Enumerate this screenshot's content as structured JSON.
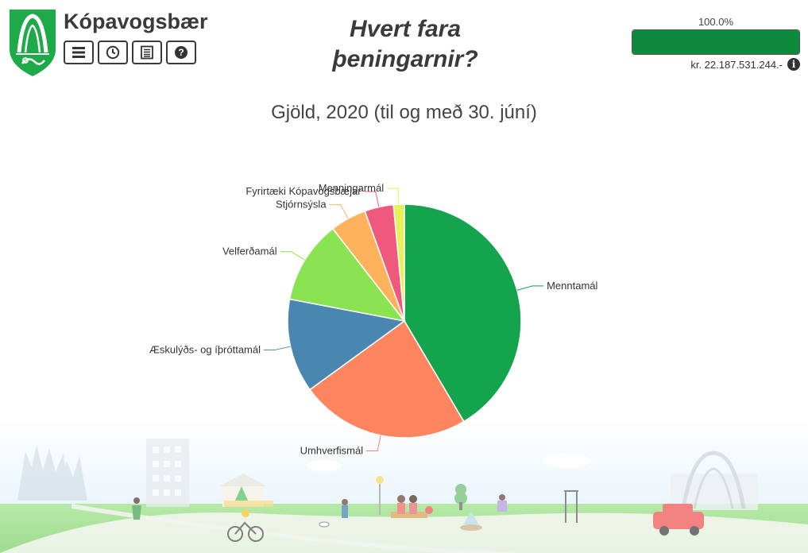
{
  "header": {
    "brand_name": "Kópavogsbær",
    "headline_line1": "Hvert fara",
    "headline_line2": "þeningarnir?",
    "toolbar": [
      {
        "name": "menu-button",
        "icon": "menu-icon"
      },
      {
        "name": "history-button",
        "icon": "clock-icon"
      },
      {
        "name": "list-button",
        "icon": "list-icon"
      },
      {
        "name": "help-button",
        "icon": "question-icon"
      }
    ]
  },
  "budget": {
    "percent_label": "100.0%",
    "percent_value": 1.0,
    "total_label": "kr. 22.187.531.244.-",
    "info_icon": "info-icon",
    "bar_color": "#0f8a3c"
  },
  "chart_data": {
    "type": "pie",
    "title": "Gjöld, 2020 (til og með 30. júní)",
    "slices": [
      {
        "label": "Menntamál",
        "percent": 41.5,
        "color": "#14a44d"
      },
      {
        "label": "Umhverfismál",
        "percent": 23.5,
        "color": "#ff8560"
      },
      {
        "label": "Æskulýðs- og íþróttamál",
        "percent": 13.0,
        "color": "#4a87b0"
      },
      {
        "label": "Velferðamál",
        "percent": 11.5,
        "color": "#8ae350"
      },
      {
        "label": "Stjórnsýsla",
        "percent": 5.0,
        "color": "#ffb25c"
      },
      {
        "label": "Fyrirtæki Kópavogsbæjar",
        "percent": 4.0,
        "color": "#ef5a7c"
      },
      {
        "label": "Menningarmál",
        "percent": 1.5,
        "color": "#e6f25a"
      }
    ]
  }
}
